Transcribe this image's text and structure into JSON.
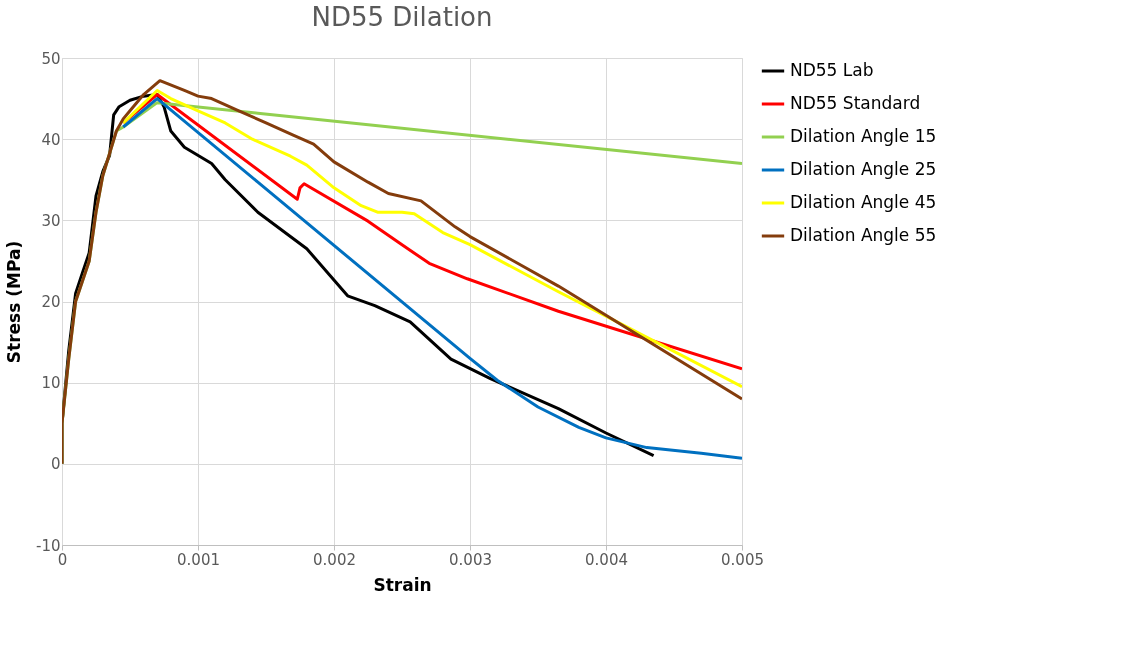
{
  "chart_data": {
    "type": "line",
    "title": "ND55 Dilation",
    "xlabel": "Strain",
    "ylabel": "Stress (MPa)",
    "xlim": [
      0,
      0.005
    ],
    "xticks": [
      0,
      0.001,
      0.002,
      0.003,
      0.004,
      0.005
    ],
    "ylim": [
      -10,
      50
    ],
    "yticks": [
      -10,
      0,
      10,
      20,
      30,
      40,
      50
    ],
    "grid": true,
    "legend": "right",
    "marker": "none",
    "line_style": "solid",
    "series": [
      {
        "name": "ND55 Lab",
        "color": "#000000",
        "x": [
          0,
          0,
          5e-05,
          0.0001,
          0.00015,
          0.0002,
          0.00025,
          0.0003,
          0.00035,
          0.00038,
          0.00042,
          0.0005,
          0.0006,
          0.0007,
          0.00075,
          0.0008,
          0.0009,
          0.0011,
          0.0012,
          0.00144,
          0.0018,
          0.0021,
          0.0023,
          0.00256,
          0.00286,
          0.00315,
          0.00365,
          0.004,
          0.00435
        ],
        "values": [
          0,
          5,
          14,
          21,
          23.5,
          26,
          33,
          36,
          38,
          43,
          44,
          44.8,
          45.3,
          45.5,
          44,
          41,
          39,
          37,
          35,
          31,
          26.5,
          20.7,
          19.5,
          17.5,
          12.9,
          10.5,
          6.8,
          3.8,
          1
        ]
      },
      {
        "name": "ND55 Standard",
        "color": "#ff0000",
        "x": [
          0.00045,
          0.0007,
          0.00173,
          0.00175,
          0.00178,
          0.00225,
          0.0025,
          0.0027,
          0.00298,
          0.00365,
          0.005
        ],
        "values": [
          42,
          45.5,
          32.6,
          34,
          34.5,
          29.9,
          27,
          24.7,
          22.8,
          18.8,
          11.7
        ]
      },
      {
        "name": "Dilation Angle 15",
        "color": "#92d050",
        "x": [
          0,
          0,
          5e-05,
          0.0001,
          0.00015,
          0.0002,
          0.00025,
          0.0003,
          0.0004,
          0.00045,
          0.0007,
          0.00144,
          0.005
        ],
        "values": [
          0,
          5,
          13,
          20,
          22.5,
          25,
          31,
          35.5,
          41,
          41.5,
          44.5,
          43.2,
          37
        ]
      },
      {
        "name": "Dilation Angle 25",
        "color": "#0070c0",
        "x": [
          0.00045,
          0.0007,
          0.00144,
          0.003,
          0.0032,
          0.0035,
          0.0038,
          0.004,
          0.0043,
          0.0047,
          0.005
        ],
        "values": [
          41.5,
          45,
          34.7,
          13,
          10.3,
          7,
          4.5,
          3.2,
          2,
          1.3,
          0.7
        ]
      },
      {
        "name": "Dilation Angle 45",
        "color": "#ffff00",
        "x": [
          0.00045,
          0.0007,
          0.0008,
          0.001,
          0.0012,
          0.0014,
          0.00168,
          0.0018,
          0.002,
          0.0022,
          0.00232,
          0.0025,
          0.00259,
          0.0028,
          0.003,
          0.00365,
          0.004,
          0.005
        ],
        "values": [
          42,
          46,
          45,
          43.5,
          42,
          40,
          37.9,
          36.8,
          34,
          31.8,
          31,
          31,
          30.8,
          28.5,
          27,
          21.2,
          18.2,
          9.5
        ]
      },
      {
        "name": "Dilation Angle 55",
        "color": "#843c0c",
        "x": [
          0,
          0,
          5e-05,
          0.0001,
          0.00015,
          0.0002,
          0.00025,
          0.0003,
          0.0004,
          0.00045,
          0.0005,
          0.0006,
          0.00072,
          0.0009,
          0.001,
          0.0011,
          0.0013,
          0.0015,
          0.0017,
          0.00185,
          0.002,
          0.00225,
          0.0024,
          0.00264,
          0.00289,
          0.003,
          0.00365,
          0.004,
          0.005
        ],
        "values": [
          0,
          5,
          13,
          20,
          22.5,
          25,
          31,
          35.5,
          41,
          42.5,
          43.5,
          45.5,
          47.2,
          46,
          45.3,
          45,
          43.5,
          42,
          40.5,
          39.4,
          37.2,
          34.7,
          33.3,
          32.4,
          29.2,
          28,
          21.9,
          18.3,
          8
        ]
      }
    ]
  }
}
